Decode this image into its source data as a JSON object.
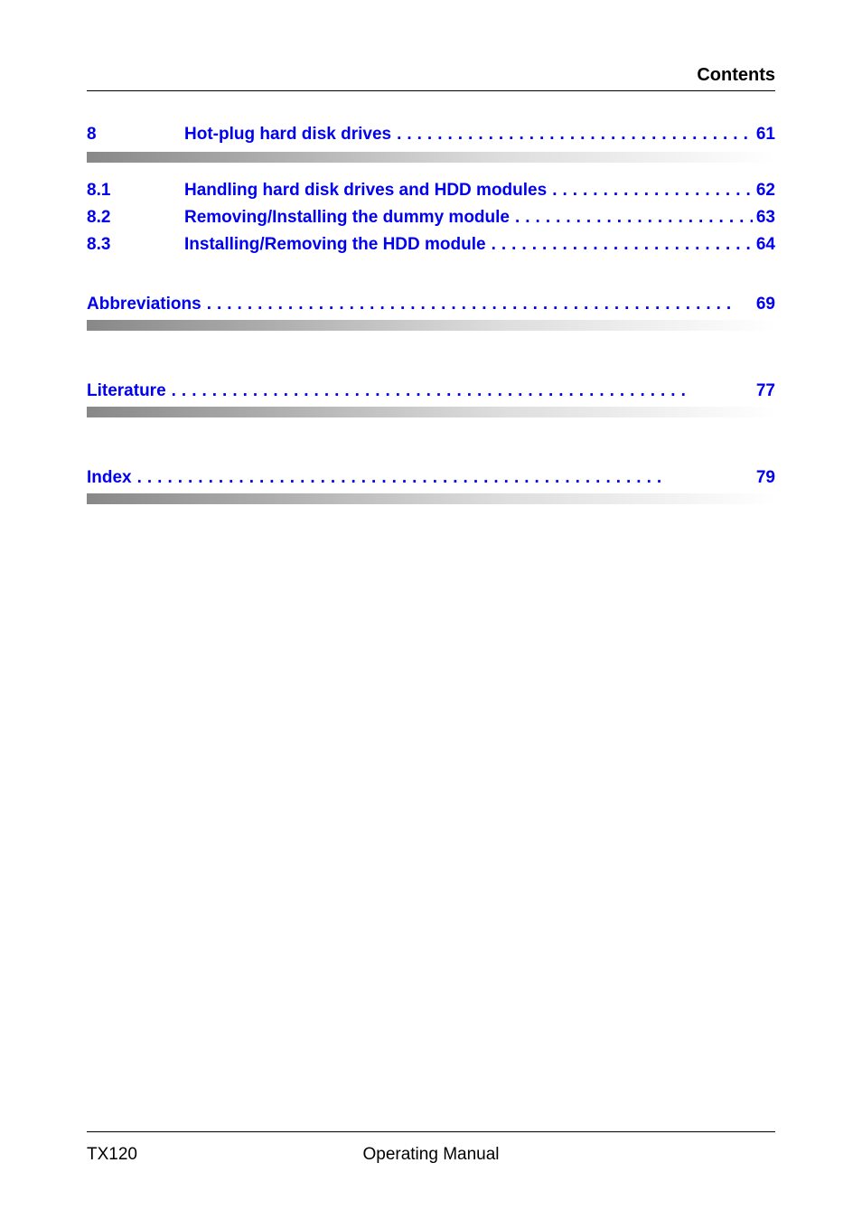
{
  "header": {
    "title": "Contents"
  },
  "toc": {
    "link_color": "#0000ee",
    "chapter": {
      "num": "8",
      "title": "Hot-plug hard disk drives",
      "page": "61"
    },
    "sections": [
      {
        "num": "8.1",
        "title": "Handling hard disk drives and HDD modules",
        "page": "62"
      },
      {
        "num": "8.2",
        "title": "Removing/Installing the dummy module",
        "page": "63"
      },
      {
        "num": "8.3",
        "title": "Installing/Removing the HDD module",
        "page": "64"
      }
    ],
    "back_matter": [
      {
        "title": "Abbreviations",
        "page": "69"
      },
      {
        "title": "Literature",
        "page": "77"
      },
      {
        "title": "Index",
        "page": "79"
      }
    ]
  },
  "footer": {
    "left": "TX120",
    "center": "Operating Manual"
  }
}
